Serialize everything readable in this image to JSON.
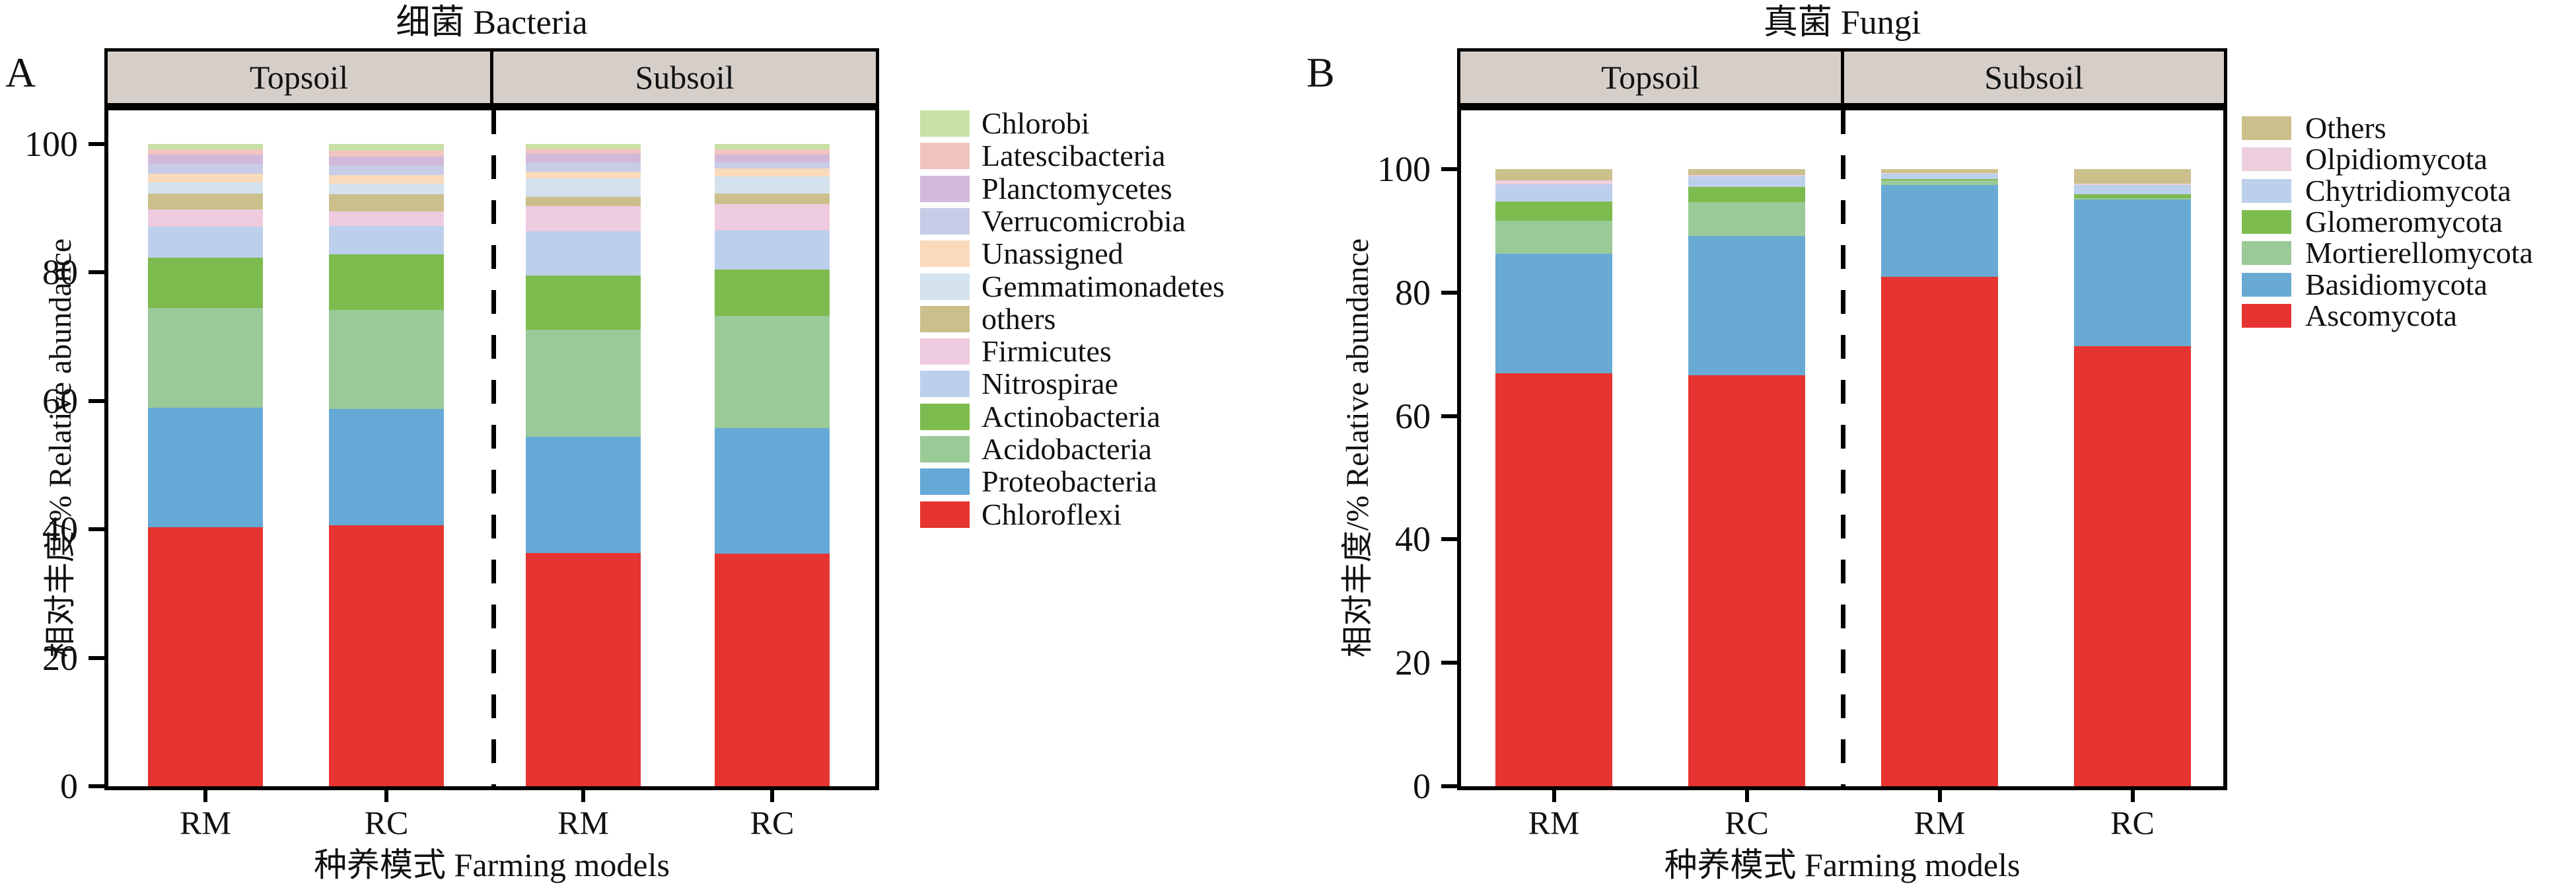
{
  "chart_data": [
    {
      "type": "bar",
      "stacked": true,
      "panel_letter": "A",
      "title": "细菌 Bacteria",
      "group_headers": [
        "Topsoil",
        "Subsoil"
      ],
      "categories": [
        "RM",
        "RC",
        "RM",
        "RC"
      ],
      "xlabel": "种养模式 Farming models",
      "ylabel": "相对丰度/% Relative abundance",
      "ylim": [
        0,
        100
      ],
      "y_ticks": [
        0,
        20,
        40,
        60,
        80,
        100
      ],
      "legend_position": "right",
      "header_fill": "#d6cfc9",
      "series_bottom_to_top": [
        {
          "name": "Chloroflexi",
          "color": "#e63430",
          "values": [
            40.3,
            40.6,
            36.3,
            36.2
          ]
        },
        {
          "name": "Proteobacteria",
          "color": "#65a9d7",
          "values": [
            18.6,
            18.1,
            18.1,
            19.5
          ]
        },
        {
          "name": "Acidobacteria",
          "color": "#9aca97",
          "values": [
            15.5,
            15.4,
            16.7,
            17.5
          ]
        },
        {
          "name": "Actinobacteria",
          "color": "#7dbb4e",
          "values": [
            7.9,
            8.7,
            8.4,
            7.2
          ]
        },
        {
          "name": "Nitrospirae",
          "color": "#bcd0ec",
          "values": [
            4.8,
            4.4,
            6.9,
            6.1
          ]
        },
        {
          "name": "Firmicutes",
          "color": "#eecbde",
          "values": [
            2.7,
            2.3,
            3.9,
            4.1
          ]
        },
        {
          "name": "others",
          "color": "#cbc08c",
          "values": [
            2.4,
            2.6,
            1.4,
            1.6
          ]
        },
        {
          "name": "Gemmatimonadetes",
          "color": "#d3e2ec",
          "values": [
            1.8,
            1.7,
            2.9,
            2.7
          ]
        },
        {
          "name": "Unassigned",
          "color": "#f9dbbc",
          "values": [
            1.3,
            1.3,
            1.0,
            1.2
          ]
        },
        {
          "name": "Verrucomicrobia",
          "color": "#c8cce6",
          "values": [
            1.6,
            1.5,
            1.5,
            1.0
          ]
        },
        {
          "name": "Planctomycetes",
          "color": "#d2b9da",
          "values": [
            1.4,
            1.4,
            1.4,
            1.2
          ]
        },
        {
          "name": "Latescibacteria",
          "color": "#f2c4c0",
          "values": [
            0.8,
            0.9,
            0.7,
            0.8
          ]
        },
        {
          "name": "Chlorobi",
          "color": "#c9e0a5",
          "values": [
            0.9,
            1.1,
            0.8,
            0.9
          ]
        }
      ]
    },
    {
      "type": "bar",
      "stacked": true,
      "panel_letter": "B",
      "title": "真菌 Fungi",
      "group_headers": [
        "Topsoil",
        "Subsoil"
      ],
      "categories": [
        "RM",
        "RC",
        "RM",
        "RC"
      ],
      "xlabel": "种养模式 Farming models",
      "ylabel": "相对丰度/% Relative abundance",
      "ylim": [
        0,
        100
      ],
      "y_ticks": [
        0,
        20,
        40,
        60,
        80,
        100
      ],
      "legend_position": "right",
      "header_fill": "#d6cfc9",
      "series_bottom_to_top": [
        {
          "name": "Ascomycota",
          "color": "#e63430",
          "values": [
            66.9,
            66.6,
            82.5,
            71.3
          ]
        },
        {
          "name": "Basidiomycota",
          "color": "#68aad4",
          "values": [
            19.4,
            22.6,
            14.9,
            23.8
          ]
        },
        {
          "name": "Mortierellomycota",
          "color": "#9aca97",
          "values": [
            5.3,
            5.4,
            0.8,
            0.2
          ]
        },
        {
          "name": "Glomeromycota",
          "color": "#7dbb4e",
          "values": [
            3.2,
            2.5,
            0.2,
            0.6
          ]
        },
        {
          "name": "Chytridiomycota",
          "color": "#bcd0ec",
          "values": [
            2.7,
            1.7,
            0.8,
            1.5
          ]
        },
        {
          "name": "Olpidiomycota",
          "color": "#eecfdf",
          "values": [
            0.7,
            0.2,
            0.2,
            0.2
          ]
        },
        {
          "name": "Others",
          "color": "#cbc08c",
          "values": [
            1.8,
            1.0,
            0.6,
            2.4
          ]
        }
      ]
    }
  ]
}
